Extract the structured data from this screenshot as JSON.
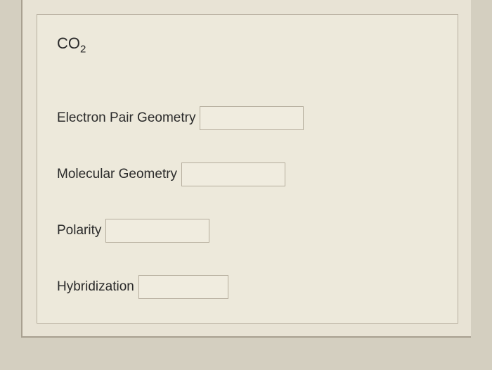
{
  "formula": {
    "base": "CO",
    "subscript": "2"
  },
  "fields": {
    "electronPairGeometry": {
      "label": "Electron Pair Geometry",
      "value": ""
    },
    "molecularGeometry": {
      "label": "Molecular Geometry",
      "value": ""
    },
    "polarity": {
      "label": "Polarity",
      "value": ""
    },
    "hybridization": {
      "label": "Hybridization",
      "value": ""
    }
  },
  "colors": {
    "pageBackground": "#d4cfc0",
    "outerPanel": "#e8e3d5",
    "innerPanel": "#ede9db",
    "border": "#b8b0a0",
    "text": "#2a2a2a",
    "inputBackground": "#f0ecdf",
    "inputBorder": "#b5ad9d"
  }
}
